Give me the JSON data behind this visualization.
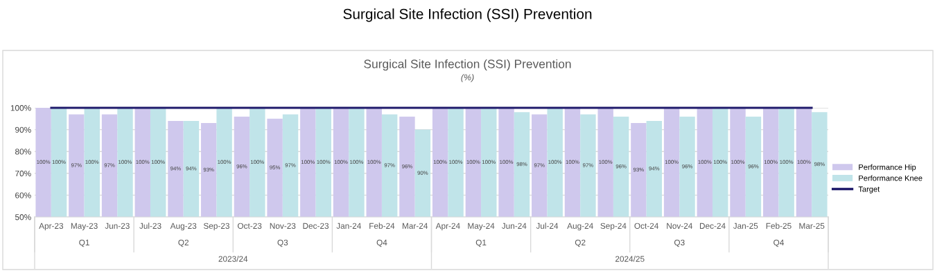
{
  "chart_data": {
    "type": "bar",
    "title": "Surgical Site Infection (SSI) Prevention",
    "subtitle": "(%)",
    "categories": [
      "Apr-23",
      "May-23",
      "Jun-23",
      "Jul-23",
      "Aug-23",
      "Sep-23",
      "Oct-23",
      "Nov-23",
      "Dec-23",
      "Jan-24",
      "Feb-24",
      "Mar-24",
      "Apr-24",
      "May-24",
      "Jun-24",
      "Jul-24",
      "Aug-24",
      "Sep-24",
      "Oct-24",
      "Nov-24",
      "Dec-24",
      "Jan-25",
      "Feb-25",
      "Mar-25"
    ],
    "series": [
      {
        "name": "Performance Hip",
        "color": "#cfc8ed",
        "values": [
          100,
          97,
          97,
          100,
          94,
          93,
          96,
          95,
          100,
          100,
          100,
          96,
          100,
          100,
          100,
          97,
          100,
          100,
          93,
          100,
          100,
          100,
          100,
          100
        ],
        "value_labels": [
          "100%",
          "97%",
          "97%",
          "100%",
          "94%",
          "93%",
          "96%",
          "95%",
          "100%",
          "100%",
          "100%",
          "96%",
          "100%",
          "100%",
          "100%",
          "97%",
          "100%",
          "100%",
          "93%",
          "100%",
          "100%",
          "100%",
          "100%",
          "100%"
        ]
      },
      {
        "name": "Performance Knee",
        "color": "#c0e4e9",
        "values": [
          100,
          100,
          100,
          100,
          94,
          100,
          100,
          97,
          100,
          100,
          97,
          90,
          100,
          100,
          98,
          100,
          97,
          96,
          94,
          96,
          100,
          96,
          100,
          98
        ],
        "value_labels": [
          "100%",
          "100%",
          "100%",
          "100%",
          "94%",
          "100%",
          "100%",
          "97%",
          "100%",
          "100%",
          "97%",
          "90%",
          "100%",
          "100%",
          "98%",
          "100%",
          "97%",
          "96%",
          "94%",
          "96%",
          "100%",
          "96%",
          "100%",
          "98%"
        ]
      },
      {
        "name": "Target",
        "type": "line",
        "color": "#1f1a6b",
        "values": [
          100,
          100,
          100,
          100,
          100,
          100,
          100,
          100,
          100,
          100,
          100,
          100,
          100,
          100,
          100,
          100,
          100,
          100,
          100,
          100,
          100,
          100,
          100,
          100
        ]
      }
    ],
    "ylim": [
      50,
      100
    ],
    "yticks": [
      {
        "value": 50,
        "label": "50%"
      },
      {
        "value": 60,
        "label": "60%"
      },
      {
        "value": 70,
        "label": "70%"
      },
      {
        "value": 80,
        "label": "80%"
      },
      {
        "value": 90,
        "label": "90%"
      },
      {
        "value": 100,
        "label": "100%"
      }
    ],
    "grid": "y",
    "legend": "right",
    "marker": "none",
    "line_style": "solid",
    "annotations": [
      "Surgical Site Infection (SSI) Prevention",
      "Q1",
      "Q2",
      "Q3",
      "Q4",
      "Q1",
      "Q2",
      "Q3",
      "Q4",
      "2023/24",
      "2024/25"
    ]
  }
}
